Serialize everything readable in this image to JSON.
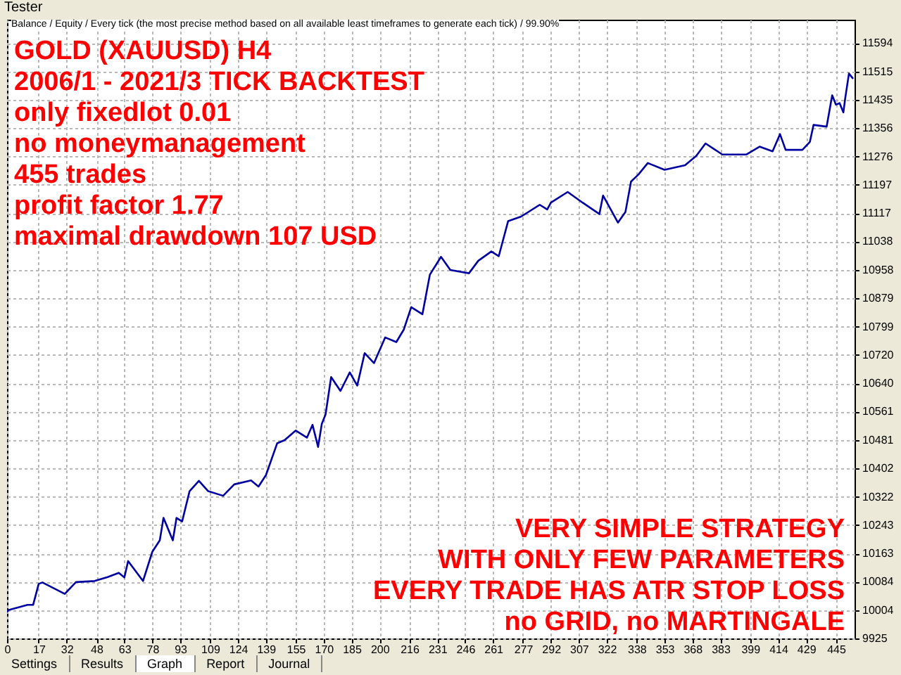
{
  "chart_data": {
    "type": "line",
    "annotations": [
      "Tester",
      "Balance / Equity / Every tick (the most precise method based on all available least timeframes to generate each tick) / 99.90%",
      "GOLD (XAUUSD) H4\n2006/1 - 2021/3 TICK BACKTEST\nonly fixedlot 0.01\nno moneymanagement\n455 trades\nprofit factor 1.77\nmaximal drawdown 107 USD",
      "VERY SIMPLE STRATEGY\nWITH ONLY FEW PARAMETERS\nEVERY TRADE HAS ATR STOP LOSS\nno GRID, no MARTINGALE",
      "Settings",
      "Results",
      "Graph",
      "Report",
      "Journal"
    ],
    "x": [
      0,
      1,
      11,
      14,
      17,
      19,
      31,
      37,
      47,
      54,
      60,
      63,
      65,
      73,
      78,
      82,
      84,
      89,
      91,
      94,
      98,
      103,
      108,
      116,
      122,
      131,
      135,
      139,
      145,
      149,
      155,
      161,
      164,
      167,
      169,
      171,
      174,
      179,
      184,
      188,
      192,
      197,
      203,
      209,
      213,
      217,
      223,
      227,
      233,
      238,
      248,
      253,
      260,
      264,
      269,
      276,
      286,
      290,
      292,
      301,
      309,
      318,
      320,
      328,
      332,
      335,
      339,
      344,
      353,
      364,
      370,
      375,
      384,
      397,
      404,
      411,
      415,
      418,
      427,
      431,
      433,
      440,
      443,
      445,
      447,
      449,
      450,
      452,
      454
    ],
    "series": [
      {
        "color": "#0000a0",
        "values": [
          10000,
          10005,
          10019,
          10019,
          10078,
          10082,
          10050,
          10083,
          10086,
          10097,
          10109,
          10096,
          10142,
          10086,
          10168,
          10200,
          10263,
          10200,
          10263,
          10253,
          10338,
          10367,
          10338,
          10325,
          10357,
          10368,
          10351,
          10383,
          10472,
          10481,
          10508,
          10488,
          10524,
          10462,
          10527,
          10553,
          10658,
          10619,
          10671,
          10634,
          10725,
          10697,
          10769,
          10756,
          10791,
          10854,
          10834,
          10945,
          10995,
          10958,
          10949,
          10984,
          11010,
          10997,
          11095,
          11108,
          11141,
          11128,
          11147,
          11177,
          11147,
          11115,
          11167,
          11091,
          11121,
          11206,
          11226,
          11258,
          11239,
          11252,
          11278,
          11313,
          11282,
          11282,
          11304,
          11291,
          11339,
          11295,
          11295,
          11317,
          11365,
          11360,
          11448,
          11422,
          11426,
          11400,
          11440,
          11509,
          11496
        ]
      }
    ],
    "xlim": [
      0,
      455
    ],
    "xticks": [
      0,
      17,
      32,
      48,
      63,
      78,
      93,
      109,
      124,
      139,
      155,
      170,
      185,
      200,
      216,
      231,
      246,
      261,
      277,
      292,
      307,
      322,
      338,
      353,
      368,
      383,
      399,
      414,
      429,
      445
    ],
    "ylim": [
      9925,
      11660
    ],
    "yticks": [
      9925,
      10004,
      10084,
      10163,
      10243,
      10322,
      10402,
      10481,
      10561,
      10640,
      10720,
      10799,
      10879,
      10958,
      11038,
      11117,
      11197,
      11276,
      11356,
      11435,
      11515,
      11594
    ],
    "grid": true,
    "marker": "none",
    "line_style": "solid"
  }
}
